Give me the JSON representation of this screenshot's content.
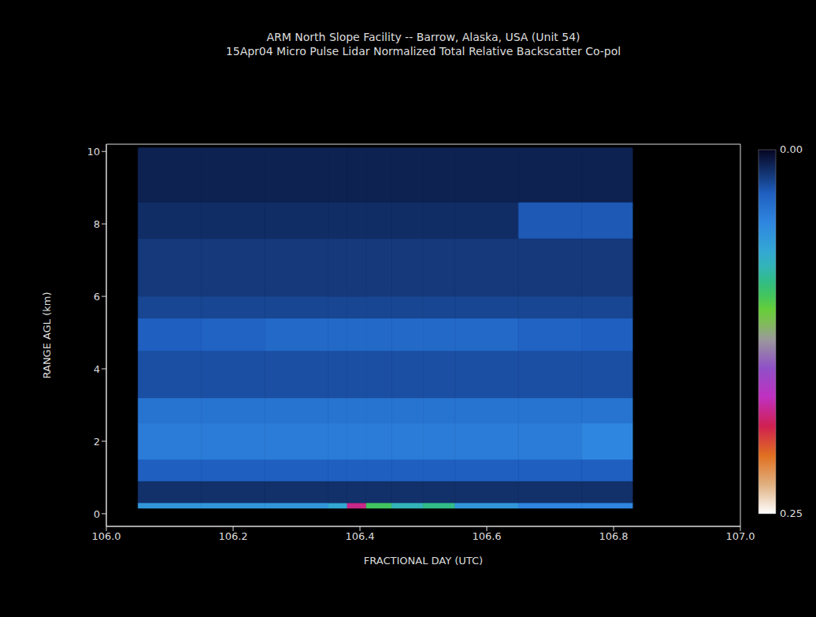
{
  "chart_data": {
    "type": "heatmap",
    "title": "ARM North Slope Facility -- Barrow, Alaska, USA (Unit 54)",
    "subtitle": "15Apr04 Micro Pulse Lidar Normalized Total Relative Backscatter Co-pol",
    "x_label": "FRACTIONAL DAY (UTC)",
    "y_label": "RANGE AGL (km)",
    "xlim": [
      106.0,
      107.0
    ],
    "xticks": [
      {
        "value": 106.0,
        "label": "106.0"
      },
      {
        "value": 106.2,
        "label": "106.2"
      },
      {
        "value": 106.4,
        "label": "106.4"
      },
      {
        "value": 106.6,
        "label": "106.6"
      },
      {
        "value": 106.8,
        "label": "106.8"
      },
      {
        "value": 107.0,
        "label": "107.0"
      }
    ],
    "ylim": [
      -0.35,
      10.2
    ],
    "yticks": [
      0,
      2,
      4,
      6,
      8,
      10
    ],
    "grid": false,
    "cells": {
      "x_edges": [
        106.05,
        106.15,
        106.25,
        106.35,
        106.38,
        106.41,
        106.45,
        106.5,
        106.55,
        106.65,
        106.75,
        106.83
      ],
      "y_edges": [
        0.15,
        0.3,
        0.9,
        1.5,
        2.5,
        3.2,
        4.5,
        5.4,
        6.0,
        7.6,
        8.6,
        10.1
      ],
      "values": [
        [
          0.06,
          0.06,
          0.06,
          0.07,
          0.18,
          0.1,
          0.08,
          0.09,
          0.06,
          0.05,
          0.05
        ],
        [
          0.015,
          0.015,
          0.015,
          0.015,
          0.015,
          0.015,
          0.015,
          0.015,
          0.015,
          0.015,
          0.015
        ],
        [
          0.03,
          0.03,
          0.03,
          0.03,
          0.03,
          0.03,
          0.03,
          0.03,
          0.03,
          0.03,
          0.03
        ],
        [
          0.045,
          0.045,
          0.045,
          0.045,
          0.045,
          0.045,
          0.045,
          0.045,
          0.045,
          0.045,
          0.05
        ],
        [
          0.04,
          0.04,
          0.04,
          0.04,
          0.04,
          0.04,
          0.04,
          0.04,
          0.04,
          0.04,
          0.04
        ],
        [
          0.025,
          0.025,
          0.025,
          0.025,
          0.025,
          0.025,
          0.025,
          0.025,
          0.025,
          0.025,
          0.025
        ],
        [
          0.03,
          0.032,
          0.035,
          0.035,
          0.035,
          0.035,
          0.035,
          0.035,
          0.035,
          0.032,
          0.03
        ],
        [
          0.022,
          0.022,
          0.022,
          0.022,
          0.022,
          0.022,
          0.022,
          0.022,
          0.022,
          0.022,
          0.022
        ],
        [
          0.018,
          0.018,
          0.018,
          0.018,
          0.018,
          0.018,
          0.018,
          0.018,
          0.018,
          0.018,
          0.018
        ],
        [
          0.014,
          0.014,
          0.014,
          0.014,
          0.014,
          0.014,
          0.014,
          0.014,
          0.014,
          0.028,
          0.028
        ],
        [
          0.01,
          0.01,
          0.01,
          0.01,
          0.01,
          0.01,
          0.01,
          0.01,
          0.01,
          0.01,
          0.01
        ]
      ]
    },
    "colorbar": {
      "range": [
        0,
        0.25
      ],
      "ticks": [
        {
          "value": 0,
          "label": "0.00"
        },
        {
          "value": 0.25,
          "label": "0.25"
        }
      ]
    }
  }
}
